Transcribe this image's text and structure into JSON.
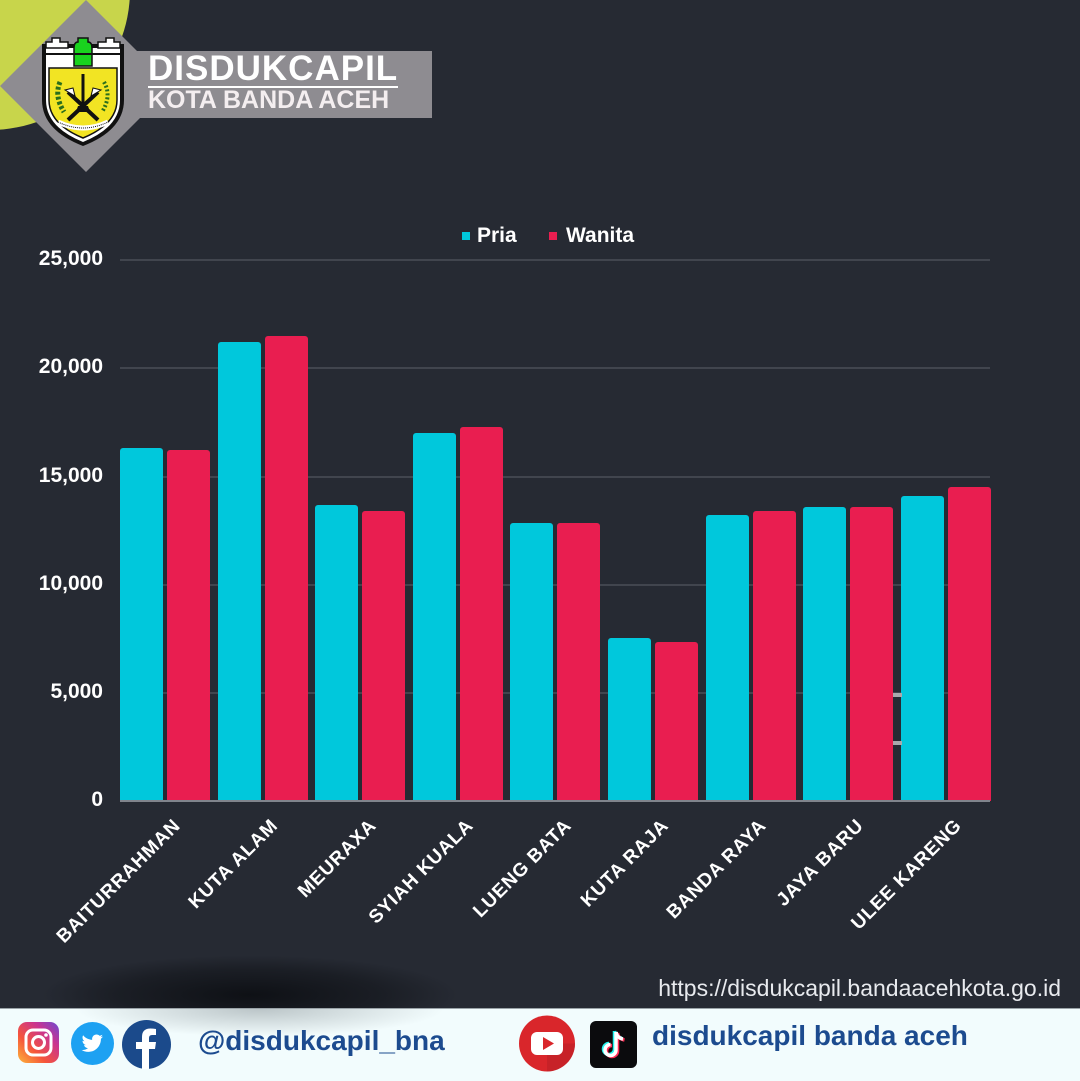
{
  "header": {
    "title": "DISDUKCAPIL",
    "subtitle": "KOTA BANDA ACEH",
    "logo": "kota-banda-aceh-emblem"
  },
  "colors": {
    "background": "#262a33",
    "pria": "#00c8dc",
    "wanita": "#e91e50",
    "banner": "#8e8c91",
    "accent_circle": "#c8d54b",
    "footer_text": "#1c4b8f"
  },
  "chart_data": {
    "type": "bar",
    "title": "",
    "xlabel": "",
    "ylabel": "",
    "ylim": [
      0,
      25000
    ],
    "yticks": [
      "25,000",
      "20,000",
      "15,000",
      "10,000",
      "5,000",
      "0"
    ],
    "ytick_values": [
      25000,
      20000,
      15000,
      10000,
      5000,
      0
    ],
    "grid": true,
    "legend_position": "top-center",
    "categories": [
      "BAITURRAHMAN",
      "KUTA ALAM",
      "MEURAXA",
      "SYIAH KUALA",
      "LUENG BATA",
      "KUTA RAJA",
      "BANDA RAYA",
      "JAYA BARU",
      "ULEE KARENG"
    ],
    "series": [
      {
        "name": "Pria",
        "color": "#00c8dc",
        "values": [
          16270,
          21190,
          13640,
          16960,
          12810,
          7500,
          13180,
          13550,
          14060
        ]
      },
      {
        "name": "Wanita",
        "color": "#e91e50",
        "values": [
          16180,
          21470,
          13390,
          17240,
          12830,
          7340,
          13380,
          13550,
          14500
        ]
      }
    ]
  },
  "footer": {
    "url": "https://disdukcapil.bandaacehkota.go.id",
    "social_handle": "@disdukcapil_bna",
    "channel_name": "disdukcapil banda aceh",
    "icons_left": [
      "instagram-icon",
      "twitter-icon",
      "facebook-icon"
    ],
    "icons_right": [
      "youtube-icon",
      "tiktok-icon"
    ]
  }
}
